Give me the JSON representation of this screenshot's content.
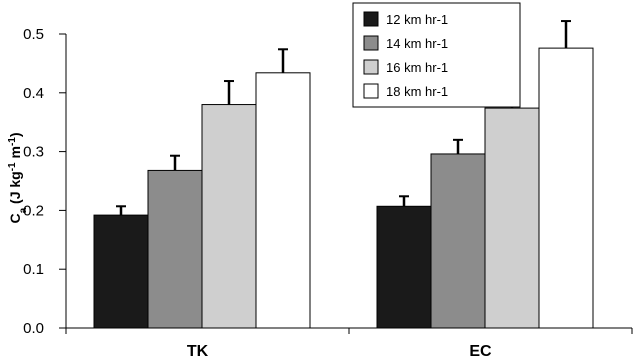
{
  "chart_data": {
    "type": "bar",
    "title": "",
    "xlabel": "",
    "ylabel": {
      "main": "C",
      "sub": "a",
      "mid": " (J kg",
      "sup1": "-1",
      "mid2": " m",
      "sup2": "-1",
      "end": ")"
    },
    "categories": [
      "TK",
      "EC"
    ],
    "series": [
      {
        "name": "12 km hr-1",
        "color": "#1a1a1a",
        "values": [
          0.192,
          0.207
        ],
        "errors": [
          0.015,
          0.017
        ]
      },
      {
        "name": "14 km hr-1",
        "color": "#8c8c8c",
        "values": [
          0.268,
          0.296
        ],
        "errors": [
          0.025,
          0.024
        ]
      },
      {
        "name": "16 km hr-1",
        "color": "#cfcfcf",
        "values": [
          0.38,
          0.374
        ],
        "errors": [
          0.04,
          0.043
        ]
      },
      {
        "name": "18 km hr-1",
        "color": "#ffffff",
        "values": [
          0.434,
          0.476
        ],
        "errors": [
          0.04,
          0.046
        ]
      }
    ],
    "ylim": [
      0,
      0.5
    ],
    "yticks": [
      "0.0",
      "0.1",
      "0.2",
      "0.3",
      "0.4",
      "0.5"
    ],
    "grid": false,
    "legend_position": "top-right"
  }
}
